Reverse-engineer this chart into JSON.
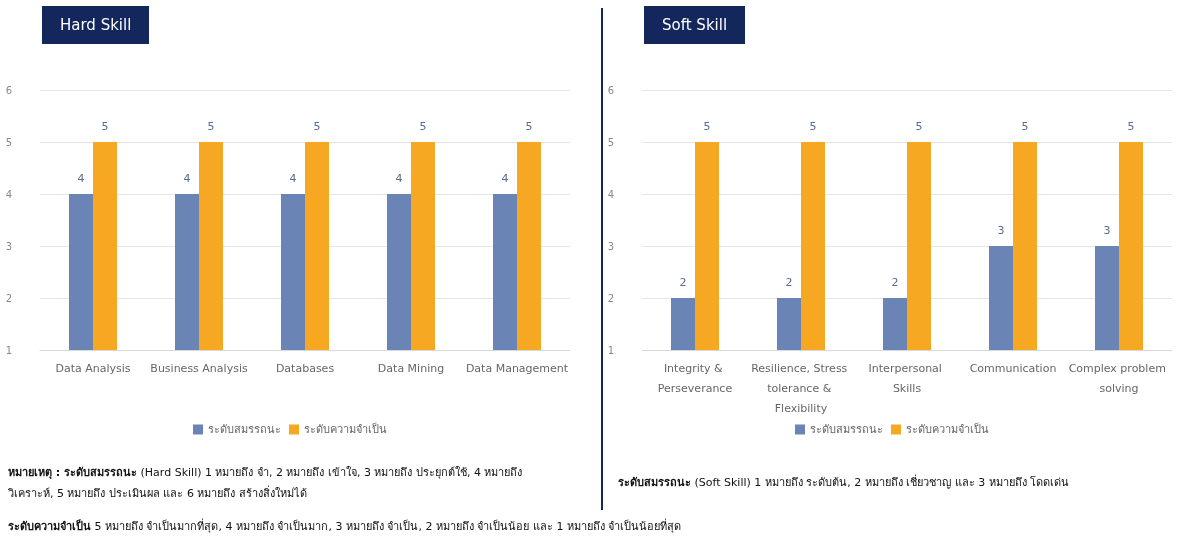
{
  "chart_data": [
    {
      "type": "bar",
      "title": "Hard Skill",
      "categories": [
        "Data Analysis",
        "Business Analysis",
        "Databases",
        "Data Mining",
        "Data Management"
      ],
      "series": [
        {
          "name": "ระดับสมรรถนะ",
          "color": "#6a84b5",
          "values": [
            4,
            4,
            4,
            4,
            4
          ]
        },
        {
          "name": "ระดับความจำเป็น",
          "color": "#f7a823",
          "values": [
            5,
            5,
            5,
            5,
            5
          ]
        }
      ],
      "ylim": [
        1,
        6
      ],
      "yticks": [
        1,
        2,
        3,
        4,
        5,
        6
      ],
      "grid": "y",
      "legend": "bottom",
      "data_labels": true,
      "annotations": [
        "หมายเหตุ : ระดับสมรรถนะ (Hard Skill) 1 หมายถึง จำ, 2 หมายถึง เข้าใจ, 3 หมายถึง ประยุกต์ใช้, 4 หมายถึง วิเคราะห์, 5 หมายถึง ประเมินผล และ 6 หมายถึง สร้างสิ่งใหม่ได้",
        "ระดับความจำเป็น 5 หมายถึง จำเป็นมากที่สุด, 4 หมายถึง จำเป็นมาก, 3 หมายถึง จำเป็น, 2 หมายถึง จำเป็นน้อย และ 1 หมายถึง จำเป็นน้อยที่สุด"
      ]
    },
    {
      "type": "bar",
      "title": "Soft Skill",
      "categories": [
        "Integrity & Perseverance",
        "Resilience, Stress tolerance & Flexibility",
        "Interpersonal Skills",
        "Communication",
        "Complex problem solving"
      ],
      "series": [
        {
          "name": "ระดับสมรรถนะ",
          "color": "#6a84b5",
          "values": [
            2,
            2,
            2,
            3,
            3
          ]
        },
        {
          "name": "ระดับความจำเป็น",
          "color": "#f7a823",
          "values": [
            5,
            5,
            5,
            5,
            5
          ]
        }
      ],
      "ylim": [
        1,
        6
      ],
      "yticks": [
        1,
        2,
        3,
        4,
        5,
        6
      ],
      "grid": "y",
      "legend": "bottom",
      "data_labels": true,
      "annotations": [
        "ระดับสมรรถนะ (Soft Skill) 1 หมายถึง ระดับต้น,  2 หมายถึง เชี่ยวชาญ และ 3 หมายถึง โดดเด่น"
      ]
    }
  ]
}
